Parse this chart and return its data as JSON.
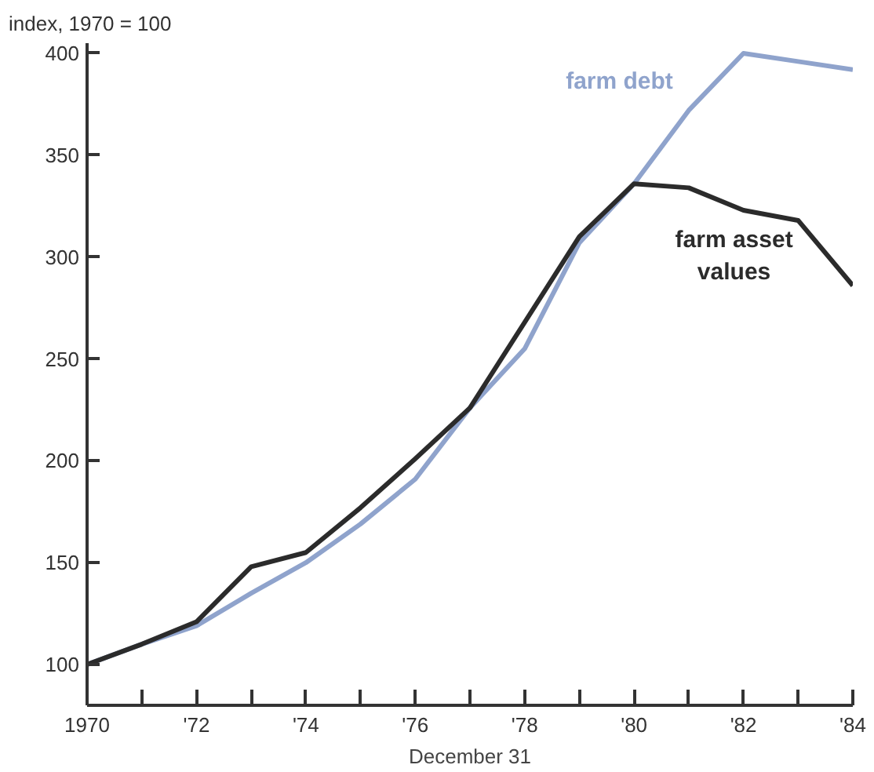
{
  "chart_data": {
    "type": "line",
    "ylabel": "index, 1970 = 100",
    "xlabel": "December 31",
    "x": [
      1970,
      1971,
      1972,
      1973,
      1974,
      1975,
      1976,
      1977,
      1978,
      1979,
      1980,
      1981,
      1982,
      1983,
      1984
    ],
    "series": [
      {
        "name": "farm debt",
        "color": "#8fa3cc",
        "values": [
          100,
          110,
          119,
          135,
          150,
          169,
          191,
          226,
          255,
          307,
          336,
          372,
          400,
          396,
          392
        ]
      },
      {
        "name": "farm asset values",
        "color": "#2b2b2b",
        "values": [
          100,
          110,
          121,
          148,
          155,
          177,
          201,
          226,
          268,
          310,
          336,
          334,
          323,
          318,
          286
        ]
      }
    ],
    "xlim": [
      1970,
      1984
    ],
    "ylim": [
      80,
      405
    ],
    "xticks": [
      1970,
      {
        "value": 1971,
        "label": null
      },
      {
        "value": 1972,
        "label": "'72"
      },
      {
        "value": 1973,
        "label": null
      },
      {
        "value": 1974,
        "label": "'74"
      },
      {
        "value": 1975,
        "label": null
      },
      {
        "value": 1976,
        "label": "'76"
      },
      {
        "value": 1977,
        "label": null
      },
      {
        "value": 1978,
        "label": "'78"
      },
      {
        "value": 1979,
        "label": null
      },
      {
        "value": 1980,
        "label": "'80"
      },
      {
        "value": 1981,
        "label": null
      },
      {
        "value": 1982,
        "label": "'82"
      },
      {
        "value": 1983,
        "label": null
      },
      {
        "value": 1984,
        "label": "'84"
      }
    ],
    "yticks": [
      100,
      150,
      200,
      250,
      300,
      350,
      400
    ],
    "grid": false,
    "legend": false,
    "marker": "none",
    "line_style": "solid"
  }
}
